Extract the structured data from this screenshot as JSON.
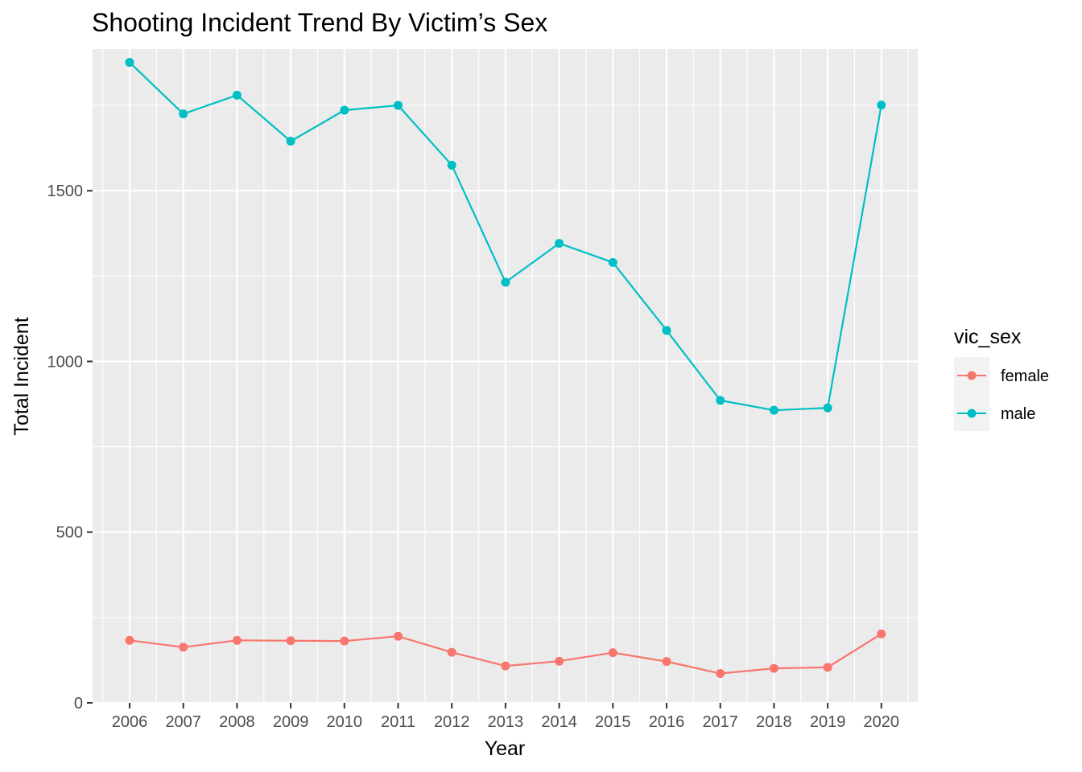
{
  "chart_data": {
    "type": "line",
    "title": "Shooting Incident Trend By Victim’s Sex",
    "xlabel": "Year",
    "ylabel": "Total Incident",
    "x": [
      "2006",
      "2007",
      "2008",
      "2009",
      "2010",
      "2011",
      "2012",
      "2013",
      "2014",
      "2015",
      "2016",
      "2017",
      "2018",
      "2019",
      "2020"
    ],
    "ylim": [
      0,
      1915
    ],
    "yticks": [
      0,
      500,
      1000,
      1500
    ],
    "grid": true,
    "legend": {
      "title": "vic_sex",
      "position": "right"
    },
    "series": [
      {
        "name": "female",
        "color": "#F8766D",
        "values": [
          183,
          163,
          183,
          182,
          181,
          195,
          148,
          108,
          122,
          147,
          121,
          86,
          101,
          104,
          202
        ]
      },
      {
        "name": "male",
        "color": "#00BFC4",
        "values": [
          1876,
          1725,
          1780,
          1645,
          1736,
          1750,
          1575,
          1232,
          1346,
          1290,
          1091,
          886,
          857,
          864,
          1751
        ]
      }
    ]
  }
}
